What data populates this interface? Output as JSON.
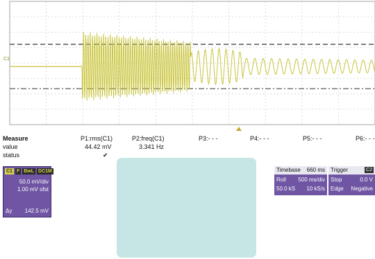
{
  "scope": {
    "channel_label": "C1",
    "colors": {
      "trace": "#c8c43a",
      "grid": "#c8c8c8",
      "dashed": "#555555",
      "border": "#999999"
    }
  },
  "measure": {
    "header": "Measure",
    "rows": [
      "value",
      "status"
    ],
    "columns": [
      {
        "label": "P1:rms(C1)",
        "value": "44.42 mV",
        "status": "✔"
      },
      {
        "label": "P2:freq(C1)",
        "value": "3.341 Hz",
        "status": ""
      },
      {
        "label": "P3:- - -",
        "value": "",
        "status": ""
      },
      {
        "label": "P4:- - -",
        "value": "",
        "status": ""
      },
      {
        "label": "P5:- - -",
        "value": "",
        "status": ""
      },
      {
        "label": "P6:- - -",
        "value": "",
        "status": ""
      }
    ]
  },
  "channel_box": {
    "tags": [
      "C1",
      "F",
      "BwL",
      "DC1M"
    ],
    "volts_div": "50.0 mV/div",
    "offset": "1.00 mV ofst",
    "delta_label": "Δy",
    "delta_value": "142.5 mV"
  },
  "timebase": {
    "title": "Timebase",
    "title_value": "660 ms",
    "mode": "Roll",
    "time_div": "500 ms/div",
    "samples": "50.0 kS",
    "rate": "10 kS/s"
  },
  "trigger": {
    "title": "Trigger",
    "badge": "C2",
    "mode": "Stop",
    "level": "0.0 V",
    "type": "Edge",
    "slope": "Negative"
  }
}
